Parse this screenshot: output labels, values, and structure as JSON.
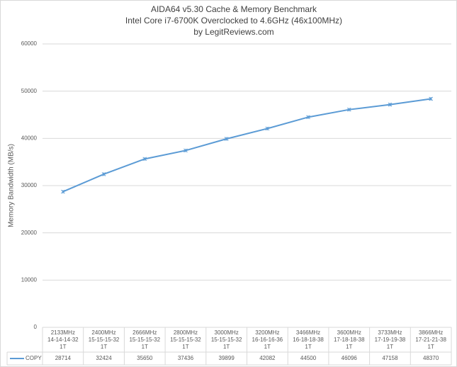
{
  "chart_data": {
    "type": "line",
    "title": "AIDA64 v5.30 Cache & Memory Benchmark",
    "subtitle": [
      "Intel Core i7-6700K Overclocked to 4.6GHz (46x100MHz)",
      "by LegitReviews.com"
    ],
    "y_label": "Memory Bandwidth (MB/s)",
    "categories": [
      [
        "2133MHz",
        "14-14-14-32",
        "1T"
      ],
      [
        "2400MHz",
        "15-15-15-32",
        "1T"
      ],
      [
        "2666MHz",
        "15-15-15-32",
        "1T"
      ],
      [
        "2800MHz",
        "15-15-15-32",
        "1T"
      ],
      [
        "3000MHz",
        "15-15-15-32",
        "1T"
      ],
      [
        "3200MHz",
        "16-16-16-36",
        "1T"
      ],
      [
        "3466MHz",
        "16-18-18-38",
        "1T"
      ],
      [
        "3600MHz",
        "17-18-18-38",
        "1T"
      ],
      [
        "3733MHz",
        "17-19-19-38",
        "1T"
      ],
      [
        "3866MHz",
        "17-21-21-38",
        "1T"
      ]
    ],
    "series": [
      {
        "name": "COPY",
        "color": "#5b9bd5",
        "values": [
          28714,
          32424,
          35650,
          37436,
          39899,
          42082,
          44500,
          46096,
          47158,
          48370
        ]
      }
    ],
    "ylim": [
      0,
      60000
    ],
    "yticks": [
      0,
      10000,
      20000,
      30000,
      40000,
      50000,
      60000
    ],
    "grid": true
  }
}
